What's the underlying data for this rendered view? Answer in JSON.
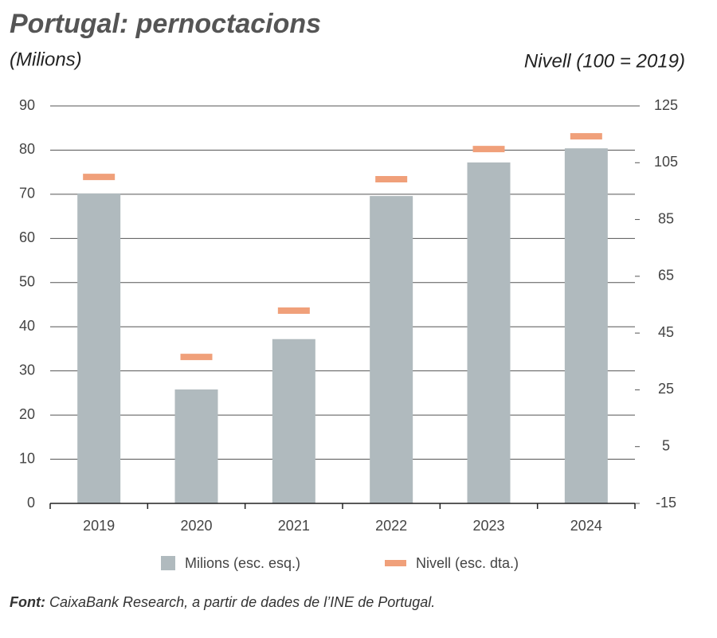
{
  "chart_data": {
    "type": "bar",
    "title": "Portugal: pernoctacions",
    "subtitle": "(Milions)",
    "y2_label": "Nivell (100 = 2019)",
    "source_label": "Font:",
    "source": "CaixaBank Research, a partir de dades de l’INE de Portugal.",
    "categories": [
      "2019",
      "2020",
      "2021",
      "2022",
      "2023",
      "2024"
    ],
    "series": [
      {
        "name": "Milions (esc. esq.)",
        "type": "bar",
        "color": "#b0babe",
        "values": [
          70.2,
          25.8,
          37.2,
          69.6,
          77.2,
          80.4
        ]
      },
      {
        "name": "Nivell (esc. dta.)",
        "type": "marker",
        "axis": "y2",
        "color": "#f0a07a",
        "values": [
          100,
          36.6,
          52.9,
          99.2,
          109.8,
          114.3
        ]
      }
    ],
    "ylim": [
      0,
      90
    ],
    "yticks": [
      0,
      10,
      20,
      30,
      40,
      50,
      60,
      70,
      80,
      90
    ],
    "y2lim": [
      -15,
      125
    ],
    "y2ticks": [
      -15,
      5,
      25,
      45,
      65,
      85,
      105,
      125
    ],
    "grid": true
  }
}
